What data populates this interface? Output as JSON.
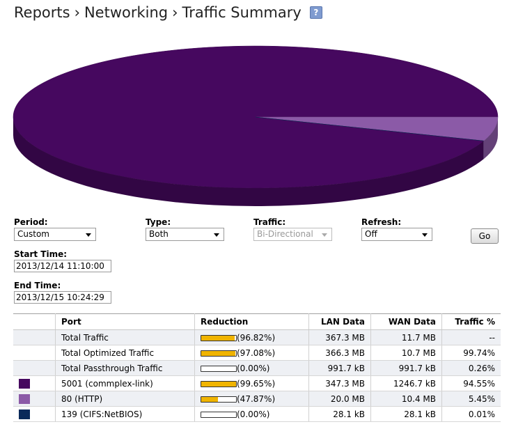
{
  "breadcrumb": {
    "items": [
      "Reports",
      "Networking",
      "Traffic Summary"
    ],
    "separator": "›",
    "help_label": "?"
  },
  "pie": {
    "colors": [
      "#46085f",
      "#8b5aa7",
      "#0a2a5a"
    ],
    "slices": [
      {
        "label": "5001 (commplex-link)",
        "value": 94.55
      },
      {
        "label": "80 (HTTP)",
        "value": 5.45
      },
      {
        "label": "139 (CIFS:NetBIOS)",
        "value": 0.01
      }
    ]
  },
  "controls": {
    "period": {
      "label": "Period:",
      "value": "Custom"
    },
    "type": {
      "label": "Type:",
      "value": "Both"
    },
    "traffic": {
      "label": "Traffic:",
      "value": "Bi-Directional"
    },
    "refresh": {
      "label": "Refresh:",
      "value": "Off"
    },
    "go_label": "Go",
    "start_time": {
      "label": "Start Time:",
      "value": "2013/12/14 11:10:00"
    },
    "end_time": {
      "label": "End Time:",
      "value": "2013/12/15 10:24:29"
    }
  },
  "table": {
    "headers": [
      "",
      "Port",
      "Reduction",
      "LAN Data",
      "WAN Data",
      "Traffic %"
    ],
    "rows": [
      {
        "swatch": "",
        "port": "Total Traffic",
        "reduction": 96.82,
        "reduction_text": "(96.82%)",
        "lan": "367.3 MB",
        "wan": "11.7 MB",
        "traffic": "--"
      },
      {
        "swatch": "",
        "port": "Total Optimized Traffic",
        "reduction": 97.08,
        "reduction_text": "(97.08%)",
        "lan": "366.3 MB",
        "wan": "10.7 MB",
        "traffic": "99.74%"
      },
      {
        "swatch": "",
        "port": "Total Passthrough Traffic",
        "reduction": 0,
        "reduction_text": "(0.00%)",
        "lan": "991.7 kB",
        "wan": "991.7 kB",
        "traffic": "0.26%"
      },
      {
        "swatch": "#46085f",
        "port": "5001 (commplex-link)",
        "reduction": 99.65,
        "reduction_text": "(99.65%)",
        "lan": "347.3 MB",
        "wan": "1246.7 kB",
        "traffic": "94.55%"
      },
      {
        "swatch": "#8b5aa7",
        "port": "80 (HTTP)",
        "reduction": 47.87,
        "reduction_text": "(47.87%)",
        "lan": "20.0 MB",
        "wan": "10.4 MB",
        "traffic": "5.45%"
      },
      {
        "swatch": "#0a2a5a",
        "port": "139 (CIFS:NetBIOS)",
        "reduction": 0,
        "reduction_text": "(0.00%)",
        "lan": "28.1 kB",
        "wan": "28.1 kB",
        "traffic": "0.01%"
      }
    ]
  }
}
